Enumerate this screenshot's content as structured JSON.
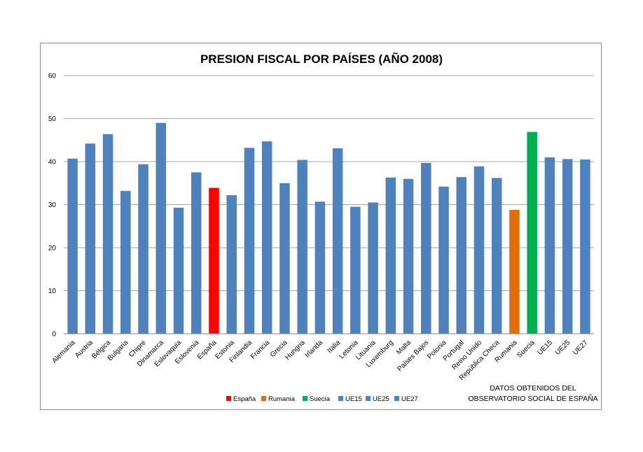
{
  "chart_data": {
    "type": "bar",
    "title": "PRESION FISCAL POR PAÍSES (AÑO 2008)",
    "xlabel": "",
    "ylabel": "",
    "ylim": [
      0,
      60
    ],
    "yticks": [
      0,
      10,
      20,
      30,
      40,
      50,
      60
    ],
    "grid": true,
    "legend_position": "bottom",
    "categories": [
      "Alemania",
      "Austria",
      "Bélgica",
      "Bulgaria",
      "Chipre",
      "Dinamarca",
      "Eslovaquia",
      "Eslovenia",
      "España",
      "Estonia",
      "Finlandia",
      "Francia",
      "Grecia",
      "Hungria",
      "Irlanda",
      "Italia",
      "Letonia",
      "Lituania",
      "Luxemburg",
      "Malta",
      "Países Bajos",
      "Polonia",
      "Portugal",
      "Reino Unido",
      "República Checa",
      "Rumania",
      "Suecia",
      "UE15",
      "UE25",
      "UE27"
    ],
    "values": [
      40.7,
      44.2,
      46.4,
      33.2,
      39.4,
      49.0,
      29.3,
      37.5,
      33.9,
      32.2,
      43.2,
      44.7,
      35.0,
      40.4,
      30.7,
      43.1,
      29.5,
      30.5,
      36.3,
      36.0,
      39.7,
      34.2,
      36.4,
      38.9,
      36.2,
      28.8,
      46.9,
      41.0,
      40.6,
      40.5
    ],
    "colors": {
      "default": "#4f81bd",
      "España": "#ff0000",
      "Rumania": "#e36c09",
      "Suecia": "#00b050"
    },
    "legend": [
      {
        "name": "España",
        "color": "#ff0000"
      },
      {
        "name": "Rumania",
        "color": "#e36c09"
      },
      {
        "name": "Suecia",
        "color": "#00b050"
      },
      {
        "name": "UE15",
        "color": "#4f81bd"
      },
      {
        "name": "UE25",
        "color": "#4f81bd"
      },
      {
        "name": "UE27",
        "color": "#4f81bd"
      }
    ],
    "annotation": [
      "DATOS OBTENIDOS DEL",
      "OBSERVATORIO SOCIAL DE ESPAÑA"
    ]
  }
}
